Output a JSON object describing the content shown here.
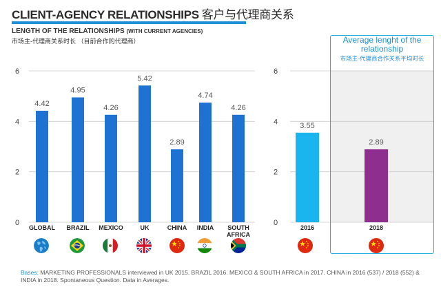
{
  "header": {
    "title": "CLIENT-AGENCY RELATIONSHIPS",
    "title_cn": "客户与代理商关系",
    "subtitle": "LENGTH OF THE RELATIONSHIPS",
    "subtitle_small": "(WITH CURRENT AGENCIES)",
    "subtitle_cn": "市场主-代理商关系时长 （目前合作的代理商）"
  },
  "highlight": {
    "title": "Average lenght of the relationship",
    "title_cn": "市场主-代理商合作关系平均时长"
  },
  "chart_data": [
    {
      "type": "bar",
      "categories": [
        "GLOBAL",
        "BRAZIL",
        "MEXICO",
        "UK",
        "CHINA",
        "INDIA",
        "SOUTH AFRICA"
      ],
      "values": [
        4.42,
        4.95,
        4.26,
        5.42,
        2.89,
        4.74,
        4.26
      ],
      "value_labels": [
        "4.42",
        "4.95",
        "4.26",
        "5.42",
        "2.89",
        "4.74",
        "4.26"
      ],
      "ylim": [
        0,
        6
      ],
      "yticks": [
        "0",
        "2",
        "4",
        "6"
      ],
      "color": "#1e73d2",
      "grid": true
    },
    {
      "type": "bar",
      "categories": [
        "2016",
        "2018"
      ],
      "values": [
        3.55,
        2.89
      ],
      "value_labels": [
        "3.55",
        "2.89"
      ],
      "colors": [
        "#1ab5ef",
        "#8e2e8e"
      ],
      "ylim": [
        0,
        6
      ],
      "yticks": [
        "0",
        "2",
        "4",
        "6"
      ],
      "grid": true
    }
  ],
  "flags": [
    "globe-icon",
    "brazil-flag-icon",
    "mexico-flag-icon",
    "uk-flag-icon",
    "china-flag-icon",
    "india-flag-icon",
    "south-africa-flag-icon",
    "china-flag-icon",
    "china-flag-icon"
  ],
  "footer": {
    "bases_lead": "Bases:",
    "bases_text": " MARKETING PROFESSIONALS interviewed in UK 2015. BRAZIL 2016. MEXICO & SOUTH AFRICA in 2017. CHINA in 2016 (537) / 2018 (552) & INDIA in 2018. Spontaneous Question. Data in Averages."
  }
}
